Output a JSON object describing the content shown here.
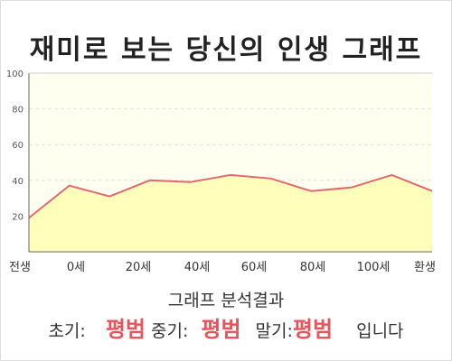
{
  "title": "재미로 보는 당신의 인생 그래프",
  "chart_data": {
    "type": "area",
    "title": "재미로 보는 당신의 인생 그래프",
    "xlabel": "",
    "ylabel": "",
    "x_tick_labels": [
      "전생",
      "0세",
      "20세",
      "40세",
      "60세",
      "80세",
      "100세",
      "환생"
    ],
    "y_ticks": [
      20,
      40,
      60,
      80,
      100
    ],
    "ylim": [
      0,
      100
    ],
    "grid": true,
    "legend": "none",
    "series": [
      {
        "values": [
          19,
          37,
          31,
          40,
          39,
          43,
          41,
          34,
          36,
          43,
          34
        ]
      }
    ],
    "line_color": "#e06870",
    "fill_color": "#ffffbb",
    "background_color": "#fffff0"
  },
  "result": {
    "heading": "그래프 분석결과",
    "early_label": "초기:",
    "early_value": "평범",
    "middle_label": "중기:",
    "middle_value": "평범",
    "late_label": "말기:",
    "late_value": "평범",
    "suffix": "입니다"
  }
}
